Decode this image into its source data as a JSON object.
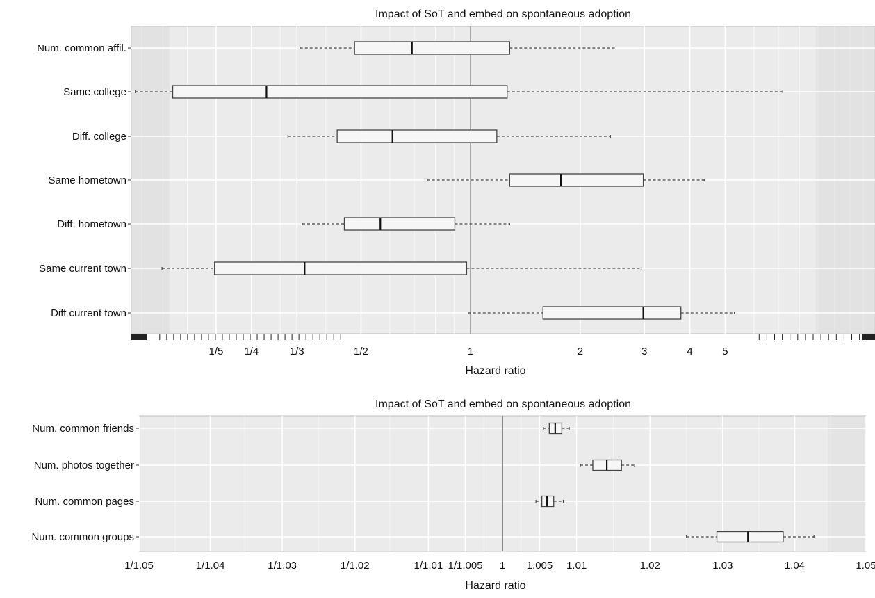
{
  "chart_data": [
    {
      "type": "box",
      "title": "Impact of SoT and embed on spontaneous adoption",
      "xlabel": "Hazard ratio",
      "ylabel": "",
      "x_scale": "log",
      "xlim": [
        0.117,
        12.9
      ],
      "reference_line": 1,
      "grid": true,
      "x_ticks": [
        {
          "value": 0.2,
          "label": "1/5"
        },
        {
          "value": 0.25,
          "label": "1/4"
        },
        {
          "value": 0.3333,
          "label": "1/3"
        },
        {
          "value": 0.5,
          "label": "1/2"
        },
        {
          "value": 1,
          "label": "1"
        },
        {
          "value": 2,
          "label": "2"
        },
        {
          "value": 3,
          "label": "3"
        },
        {
          "value": 4,
          "label": "4"
        },
        {
          "value": 5,
          "label": "5"
        }
      ],
      "categories": [
        "Num. common affil.",
        "Same college",
        "Diff. college",
        "Same hometown",
        "Diff. hometown",
        "Same current town",
        "Diff current town"
      ],
      "boxes": [
        {
          "label": "Num. common affil.",
          "whisker_low": 0.34,
          "q1": 0.48,
          "median": 0.69,
          "q3": 1.28,
          "whisker_high": 2.48
        },
        {
          "label": "Same college",
          "whisker_low": 0.12,
          "q1": 0.152,
          "median": 0.275,
          "q3": 1.26,
          "whisker_high": 7.2
        },
        {
          "label": "Diff. college",
          "whisker_low": 0.315,
          "q1": 0.43,
          "median": 0.61,
          "q3": 1.18,
          "whisker_high": 2.42
        },
        {
          "label": "Same hometown",
          "whisker_low": 0.76,
          "q1": 1.28,
          "median": 1.77,
          "q3": 2.98,
          "whisker_high": 4.38
        },
        {
          "label": "Diff. hometown",
          "whisker_low": 0.345,
          "q1": 0.45,
          "median": 0.565,
          "q3": 0.905,
          "whisker_high": 1.28
        },
        {
          "label": "Same current town",
          "whisker_low": 0.142,
          "q1": 0.198,
          "median": 0.35,
          "q3": 0.975,
          "whisker_high": 2.94
        },
        {
          "label": "Diff current town",
          "whisker_low": 0.985,
          "q1": 1.58,
          "median": 2.98,
          "q3": 3.78,
          "whisker_high": 5.3
        }
      ]
    },
    {
      "type": "box",
      "title": "Impact of SoT and embed on spontaneous adoption",
      "xlabel": "Hazard ratio",
      "ylabel": "",
      "x_scale": "log",
      "xlim": [
        0.95238,
        1.05
      ],
      "reference_line": 1,
      "grid": true,
      "x_ticks": [
        {
          "value": 0.952381,
          "label": "1/1.05"
        },
        {
          "value": 0.961538,
          "label": "1/1.04"
        },
        {
          "value": 0.970874,
          "label": "1/1.03"
        },
        {
          "value": 0.980392,
          "label": "1/1.02"
        },
        {
          "value": 0.990099,
          "label": "1/1.01"
        },
        {
          "value": 0.995025,
          "label": "1/1.005"
        },
        {
          "value": 1,
          "label": "1"
        },
        {
          "value": 1.005,
          "label": "1.005"
        },
        {
          "value": 1.01,
          "label": "1.01"
        },
        {
          "value": 1.02,
          "label": "1.02"
        },
        {
          "value": 1.03,
          "label": "1.03"
        },
        {
          "value": 1.04,
          "label": "1.04"
        },
        {
          "value": 1.05,
          "label": "1.05"
        }
      ],
      "categories": [
        "Num. common friends",
        "Num. photos together",
        "Num. common pages",
        "Num. common groups"
      ],
      "boxes": [
        {
          "label": "Num. common friends",
          "whisker_low": 1.0055,
          "q1": 1.0063,
          "median": 1.0071,
          "q3": 1.008,
          "whisker_high": 1.009
        },
        {
          "label": "Num. photos together",
          "whisker_low": 1.0105,
          "q1": 1.0122,
          "median": 1.0141,
          "q3": 1.0161,
          "whisker_high": 1.0179
        },
        {
          "label": "Num. common pages",
          "whisker_low": 1.0045,
          "q1": 1.0053,
          "median": 1.006,
          "q3": 1.0069,
          "whisker_high": 1.0082
        },
        {
          "label": "Num. common groups",
          "whisker_low": 1.025,
          "q1": 1.0292,
          "median": 1.0335,
          "q3": 1.0384,
          "whisker_high": 1.0427
        }
      ]
    }
  ]
}
